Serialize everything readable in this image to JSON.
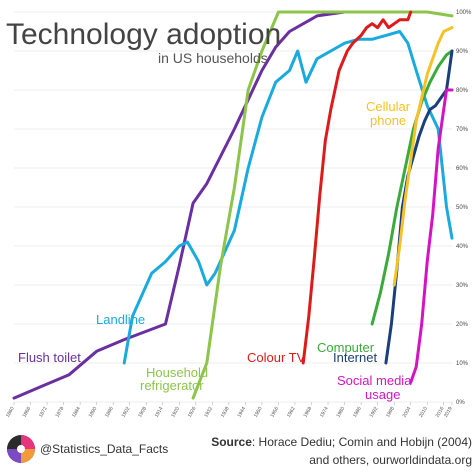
{
  "header": {
    "title": "Technology adoption",
    "subtitle": "in US households"
  },
  "footer": {
    "handle": "@Statistics_Data_Facts",
    "source_label": "Source",
    "source_text": ": Horace Dediu; Comin and Hobijn (2004)",
    "source_text2": "and others, ourworldindata.org"
  },
  "chart_data": {
    "type": "line",
    "ylim": [
      0,
      100
    ],
    "xlim": [
      1860,
      2019
    ],
    "y_ticks": [
      "0%",
      "10%",
      "20%",
      "30%",
      "40%",
      "50%",
      "60%",
      "70%",
      "80%",
      "90%",
      "100%"
    ],
    "x_ticks": [
      "1860",
      "1866",
      "1872",
      "1878",
      "1884",
      "1890",
      "1896",
      "1902",
      "1908",
      "1914",
      "1920",
      "1926",
      "1932",
      "1938",
      "1944",
      "1950",
      "1956",
      "1962",
      "1968",
      "1974",
      "1980",
      "1986",
      "1992",
      "1998",
      "2004",
      "2010",
      "2016",
      "2019"
    ],
    "series": [
      {
        "name": "Flush toilet",
        "color": "#6a2fa0",
        "points": [
          [
            1860,
            1
          ],
          [
            1870,
            4
          ],
          [
            1880,
            7
          ],
          [
            1890,
            13
          ],
          [
            1900,
            16
          ],
          [
            1915,
            20
          ],
          [
            1920,
            35
          ],
          [
            1925,
            51
          ],
          [
            1930,
            56
          ],
          [
            1940,
            70
          ],
          [
            1950,
            85
          ],
          [
            1955,
            91
          ],
          [
            1960,
            95
          ],
          [
            1970,
            99
          ],
          [
            1980,
            100
          ]
        ]
      },
      {
        "name": "Landline",
        "color": "#1aaadd",
        "points": [
          [
            1900,
            10
          ],
          [
            1903,
            22
          ],
          [
            1910,
            33
          ],
          [
            1915,
            36
          ],
          [
            1920,
            40
          ],
          [
            1923,
            41
          ],
          [
            1927,
            36
          ],
          [
            1930,
            30
          ],
          [
            1933,
            33
          ],
          [
            1940,
            44
          ],
          [
            1945,
            60
          ],
          [
            1950,
            73
          ],
          [
            1955,
            82
          ],
          [
            1960,
            85
          ],
          [
            1963,
            90
          ],
          [
            1966,
            82
          ],
          [
            1970,
            88
          ],
          [
            1975,
            90
          ],
          [
            1980,
            92
          ],
          [
            1985,
            93
          ],
          [
            1990,
            93
          ],
          [
            1995,
            94
          ],
          [
            2000,
            95
          ],
          [
            2003,
            92
          ],
          [
            2006,
            85
          ],
          [
            2010,
            76
          ],
          [
            2014,
            70
          ],
          [
            2017,
            50
          ],
          [
            2019,
            42
          ]
        ]
      },
      {
        "name": "Household refrigerator",
        "color": "#8cc54a",
        "points": [
          [
            1925,
            1
          ],
          [
            1930,
            10
          ],
          [
            1935,
            35
          ],
          [
            1940,
            55
          ],
          [
            1945,
            80
          ],
          [
            1950,
            90
          ],
          [
            1953,
            95
          ],
          [
            1956,
            100
          ],
          [
            1970,
            100
          ],
          [
            1990,
            100
          ],
          [
            2010,
            100
          ],
          [
            2019,
            99
          ]
        ]
      },
      {
        "name": "Colour TV",
        "color": "#dd1b1b",
        "points": [
          [
            1965,
            10
          ],
          [
            1967,
            22
          ],
          [
            1969,
            37
          ],
          [
            1971,
            53
          ],
          [
            1973,
            67
          ],
          [
            1975,
            75
          ],
          [
            1978,
            85
          ],
          [
            1981,
            90
          ],
          [
            1983,
            92
          ],
          [
            1986,
            94
          ],
          [
            1988,
            96
          ],
          [
            1990,
            97
          ],
          [
            1992,
            96
          ],
          [
            1994,
            98
          ],
          [
            1996,
            96
          ],
          [
            1998,
            97
          ],
          [
            2000,
            98
          ],
          [
            2003,
            98
          ],
          [
            2004,
            100
          ]
        ]
      },
      {
        "name": "Computer",
        "color": "#3aaa3a",
        "points": [
          [
            1990,
            20
          ],
          [
            1993,
            28
          ],
          [
            1996,
            38
          ],
          [
            1999,
            50
          ],
          [
            2002,
            60
          ],
          [
            2005,
            70
          ],
          [
            2008,
            77
          ],
          [
            2011,
            82
          ],
          [
            2014,
            86
          ],
          [
            2017,
            89
          ],
          [
            2019,
            90
          ]
        ]
      },
      {
        "name": "Internet",
        "color": "#1a3f7a",
        "points": [
          [
            1995,
            10
          ],
          [
            1997,
            20
          ],
          [
            1999,
            34
          ],
          [
            2001,
            50
          ],
          [
            2003,
            58
          ],
          [
            2005,
            63
          ],
          [
            2007,
            68
          ],
          [
            2009,
            72
          ],
          [
            2011,
            75
          ],
          [
            2013,
            76
          ],
          [
            2015,
            78
          ],
          [
            2017,
            80
          ],
          [
            2019,
            90
          ]
        ]
      },
      {
        "name": "Cellular phone",
        "color": "#f5c229",
        "points": [
          [
            1998,
            30
          ],
          [
            2000,
            40
          ],
          [
            2002,
            52
          ],
          [
            2004,
            62
          ],
          [
            2006,
            72
          ],
          [
            2008,
            78
          ],
          [
            2010,
            84
          ],
          [
            2012,
            88
          ],
          [
            2014,
            92
          ],
          [
            2016,
            95
          ],
          [
            2019,
            96
          ]
        ]
      },
      {
        "name": "Social media usage",
        "color": "#d414c2",
        "points": [
          [
            2004,
            5
          ],
          [
            2006,
            9
          ],
          [
            2008,
            20
          ],
          [
            2010,
            36
          ],
          [
            2012,
            48
          ],
          [
            2014,
            65
          ],
          [
            2016,
            75
          ],
          [
            2017,
            80
          ],
          [
            2019,
            80
          ]
        ]
      }
    ],
    "labels": [
      {
        "text": "Flush toilet",
        "series": 0
      },
      {
        "text": "Landline",
        "series": 1
      },
      {
        "text": "Household",
        "series": 2
      },
      {
        "text": "refrigerator",
        "series": 2
      },
      {
        "text": "Colour TV",
        "series": 3
      },
      {
        "text": "Computer",
        "series": 4
      },
      {
        "text": "Internet",
        "series": 5
      },
      {
        "text": "Cellular",
        "series": 6
      },
      {
        "text": "phone",
        "series": 6
      },
      {
        "text": "Social media",
        "series": 7
      },
      {
        "text": "usage",
        "series": 7
      }
    ]
  }
}
